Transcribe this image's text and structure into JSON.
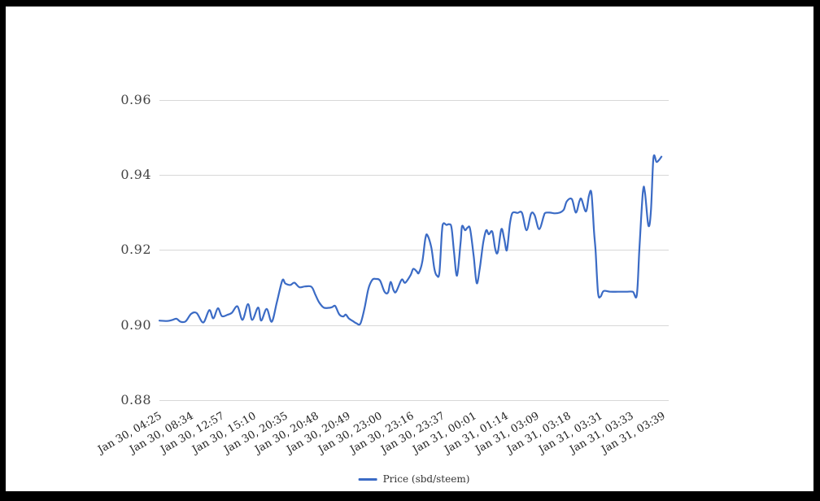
{
  "page": {
    "frame_color": "#000000",
    "paper_color": "#ffffff"
  },
  "chart_data": {
    "type": "line",
    "title": "",
    "xlabel": "",
    "ylabel": "",
    "grid": "horizontal",
    "grid_color": "#d8d8d8",
    "legend": {
      "label": "Price (sbd/steem)",
      "position": "bottom-center"
    },
    "y_axis": {
      "tick_labels": [
        "0.96",
        "0.94",
        "0.92",
        "0.90",
        "0.88"
      ],
      "tick_values": [
        0.96,
        0.94,
        0.92,
        0.9,
        0.88
      ],
      "range": [
        0.88,
        0.96
      ]
    },
    "x_axis": {
      "tick_labels": [
        "Jan 30, 04:25",
        "Jan 30, 08:34",
        "Jan 30, 12:57",
        "Jan 30, 15:10",
        "Jan 30, 20:35",
        "Jan 30, 20:48",
        "Jan 30, 20:49",
        "Jan 30, 23:00",
        "Jan 30, 23:16",
        "Jan 30, 23:37",
        "Jan 31, 00:01",
        "Jan 31, 01:14",
        "Jan 31, 03:09",
        "Jan 31, 03:18",
        "Jan 31, 03:31",
        "Jan 31, 03:33",
        "Jan 31, 03:39"
      ],
      "label_rotation_deg": -30
    },
    "series": [
      {
        "name": "Price (sbd/steem)",
        "color": "#3B6BC5",
        "points": [
          [
            0.0,
            0.9012
          ],
          [
            0.015,
            0.9011
          ],
          [
            0.026,
            0.9014
          ],
          [
            0.034,
            0.9017
          ],
          [
            0.042,
            0.9009
          ],
          [
            0.052,
            0.901
          ],
          [
            0.063,
            0.903
          ],
          [
            0.074,
            0.9032
          ],
          [
            0.087,
            0.9007
          ],
          [
            0.099,
            0.904
          ],
          [
            0.107,
            0.9018
          ],
          [
            0.116,
            0.9045
          ],
          [
            0.124,
            0.9024
          ],
          [
            0.136,
            0.9028
          ],
          [
            0.144,
            0.9033
          ],
          [
            0.155,
            0.905
          ],
          [
            0.165,
            0.9014
          ],
          [
            0.176,
            0.9056
          ],
          [
            0.184,
            0.9014
          ],
          [
            0.196,
            0.9047
          ],
          [
            0.202,
            0.9012
          ],
          [
            0.213,
            0.9043
          ],
          [
            0.223,
            0.9009
          ],
          [
            0.233,
            0.906
          ],
          [
            0.244,
            0.9119
          ],
          [
            0.25,
            0.9111
          ],
          [
            0.26,
            0.9107
          ],
          [
            0.268,
            0.9113
          ],
          [
            0.278,
            0.9101
          ],
          [
            0.289,
            0.9103
          ],
          [
            0.302,
            0.9102
          ],
          [
            0.31,
            0.908
          ],
          [
            0.317,
            0.9061
          ],
          [
            0.326,
            0.9047
          ],
          [
            0.336,
            0.9046
          ],
          [
            0.343,
            0.9048
          ],
          [
            0.349,
            0.9051
          ],
          [
            0.357,
            0.9029
          ],
          [
            0.365,
            0.9023
          ],
          [
            0.37,
            0.9028
          ],
          [
            0.376,
            0.9018
          ],
          [
            0.384,
            0.9011
          ],
          [
            0.391,
            0.9005
          ],
          [
            0.399,
            0.9004
          ],
          [
            0.407,
            0.9043
          ],
          [
            0.415,
            0.9097
          ],
          [
            0.423,
            0.9121
          ],
          [
            0.43,
            0.9123
          ],
          [
            0.438,
            0.9119
          ],
          [
            0.447,
            0.9089
          ],
          [
            0.454,
            0.9087
          ],
          [
            0.459,
            0.9115
          ],
          [
            0.465,
            0.9093
          ],
          [
            0.47,
            0.9089
          ],
          [
            0.481,
            0.9121
          ],
          [
            0.488,
            0.9113
          ],
          [
            0.499,
            0.9134
          ],
          [
            0.504,
            0.915
          ],
          [
            0.511,
            0.9143
          ],
          [
            0.515,
            0.9139
          ],
          [
            0.522,
            0.9169
          ],
          [
            0.528,
            0.923
          ],
          [
            0.532,
            0.924
          ],
          [
            0.54,
            0.9206
          ],
          [
            0.546,
            0.915
          ],
          [
            0.551,
            0.9132
          ],
          [
            0.556,
            0.9141
          ],
          [
            0.561,
            0.925
          ],
          [
            0.564,
            0.9271
          ],
          [
            0.57,
            0.9267
          ],
          [
            0.575,
            0.9269
          ],
          [
            0.58,
            0.926
          ],
          [
            0.585,
            0.9195
          ],
          [
            0.591,
            0.9132
          ],
          [
            0.598,
            0.922
          ],
          [
            0.601,
            0.9264
          ],
          [
            0.607,
            0.9253
          ],
          [
            0.612,
            0.926
          ],
          [
            0.617,
            0.9256
          ],
          [
            0.624,
            0.9184
          ],
          [
            0.63,
            0.9112
          ],
          [
            0.636,
            0.915
          ],
          [
            0.643,
            0.922
          ],
          [
            0.649,
            0.9253
          ],
          [
            0.654,
            0.9242
          ],
          [
            0.661,
            0.9249
          ],
          [
            0.667,
            0.9202
          ],
          [
            0.672,
            0.9195
          ],
          [
            0.679,
            0.9256
          ],
          [
            0.685,
            0.9228
          ],
          [
            0.69,
            0.92
          ],
          [
            0.696,
            0.927
          ],
          [
            0.701,
            0.9299
          ],
          [
            0.711,
            0.9299
          ],
          [
            0.72,
            0.9299
          ],
          [
            0.729,
            0.9253
          ],
          [
            0.738,
            0.9297
          ],
          [
            0.745,
            0.9293
          ],
          [
            0.754,
            0.9256
          ],
          [
            0.763,
            0.929
          ],
          [
            0.766,
            0.9299
          ],
          [
            0.775,
            0.93
          ],
          [
            0.785,
            0.9298
          ],
          [
            0.795,
            0.93
          ],
          [
            0.803,
            0.9308
          ],
          [
            0.809,
            0.933
          ],
          [
            0.819,
            0.9336
          ],
          [
            0.827,
            0.93
          ],
          [
            0.834,
            0.933
          ],
          [
            0.838,
            0.9336
          ],
          [
            0.847,
            0.9303
          ],
          [
            0.853,
            0.9345
          ],
          [
            0.858,
            0.9351
          ],
          [
            0.863,
            0.925
          ],
          [
            0.866,
            0.92
          ],
          [
            0.871,
            0.9087
          ],
          [
            0.876,
            0.9076
          ],
          [
            0.882,
            0.9091
          ],
          [
            0.895,
            0.9089
          ],
          [
            0.911,
            0.9089
          ],
          [
            0.927,
            0.9089
          ],
          [
            0.94,
            0.9089
          ],
          [
            0.948,
            0.908
          ],
          [
            0.953,
            0.92
          ],
          [
            0.96,
            0.9353
          ],
          [
            0.964,
            0.9355
          ],
          [
            0.971,
            0.9266
          ],
          [
            0.976,
            0.9303
          ],
          [
            0.981,
            0.9445
          ],
          [
            0.987,
            0.9435
          ],
          [
            0.992,
            0.944
          ],
          [
            0.997,
            0.9449
          ]
        ]
      }
    ]
  }
}
